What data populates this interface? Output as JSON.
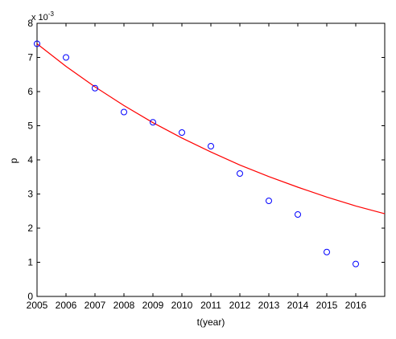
{
  "chart_data": {
    "type": "scatter",
    "title": "",
    "xlabel": "t(year)",
    "ylabel": "p",
    "xlim": [
      2005,
      2017
    ],
    "ylim": [
      0,
      8
    ],
    "y_scale_factor_label": "x 10",
    "y_scale_exponent": "-3",
    "x_ticks": [
      "2005",
      "2006",
      "2007",
      "2008",
      "2009",
      "2010",
      "2011",
      "2012",
      "2013",
      "2014",
      "2015",
      "2016"
    ],
    "y_ticks": [
      "0",
      "1",
      "2",
      "3",
      "4",
      "5",
      "6",
      "7",
      "8"
    ],
    "grid": false,
    "series": [
      {
        "type": "scatter",
        "marker": "circle",
        "color": "#0000ff",
        "x": [
          2005,
          2006,
          2007,
          2008,
          2009,
          2010,
          2011,
          2012,
          2013,
          2014,
          2015,
          2016
        ],
        "y": [
          7.4,
          7.0,
          6.1,
          5.4,
          5.1,
          4.8,
          4.4,
          3.6,
          2.8,
          2.4,
          1.3,
          0.95
        ]
      },
      {
        "type": "line",
        "color": "#ff0000",
        "x": [
          2005,
          2006,
          2007,
          2008,
          2009,
          2010,
          2011,
          2012,
          2013,
          2014,
          2015,
          2016,
          2017
        ],
        "y": [
          7.4,
          6.74,
          6.14,
          5.59,
          5.09,
          4.64,
          4.23,
          3.85,
          3.51,
          3.2,
          2.91,
          2.65,
          2.42
        ]
      }
    ]
  }
}
